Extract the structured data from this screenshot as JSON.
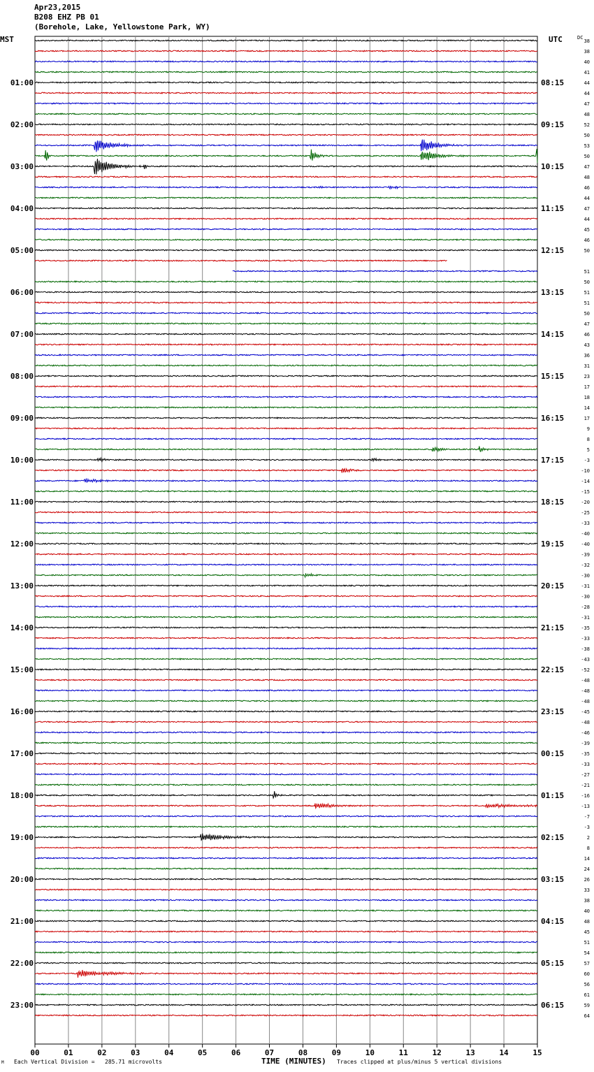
{
  "header": {
    "date": "Apr23,2015",
    "station": "B208 EHZ PB 01",
    "location": "(Borehole, Lake, Yellowstone Park, WY)"
  },
  "chart_data": {
    "type": "line",
    "xlabel": "TIME (MINUTES)",
    "xlim": [
      0,
      15
    ],
    "x_ticks": [
      "00",
      "01",
      "02",
      "03",
      "04",
      "05",
      "06",
      "07",
      "08",
      "09",
      "10",
      "11",
      "12",
      "13",
      "14",
      "15"
    ],
    "left_axis_title": "MST",
    "right_axis_title": "UTC",
    "dc_label": "DC",
    "hour_labels_left": [
      "01:00",
      "02:00",
      "03:00",
      "04:00",
      "05:00",
      "06:00",
      "07:00",
      "08:00",
      "09:00",
      "10:00",
      "11:00",
      "12:00",
      "13:00",
      "14:00",
      "15:00",
      "16:00",
      "17:00",
      "18:00",
      "19:00",
      "20:00",
      "21:00",
      "22:00",
      "23:00"
    ],
    "hour_labels_right": [
      "08:15",
      "09:15",
      "10:15",
      "11:15",
      "12:15",
      "13:15",
      "14:15",
      "15:15",
      "16:15",
      "17:15",
      "18:15",
      "19:15",
      "20:15",
      "21:15",
      "22:15",
      "23:15",
      "00:15",
      "01:15",
      "02:15",
      "03:15",
      "04:15",
      "05:15",
      "06:15"
    ],
    "dc_offsets": [
      "38",
      "38",
      "40",
      "41",
      "44",
      "44",
      "47",
      "48",
      "52",
      "50",
      "53",
      "50",
      "47",
      "48",
      "46",
      "44",
      "47",
      "44",
      "45",
      "46",
      "50",
      "",
      "51",
      "50",
      "51",
      "51",
      "50",
      "47",
      "46",
      "43",
      "36",
      "31",
      "23",
      "17",
      "18",
      "14",
      "17",
      "9",
      "8",
      "5",
      "-3",
      "-10",
      "-14",
      "-15",
      "-20",
      "-25",
      "-33",
      "-40",
      "-40",
      "-39",
      "-32",
      "-30",
      "-31",
      "-30",
      "-28",
      "-31",
      "-35",
      "-33",
      "-38",
      "-43",
      "-52",
      "-48",
      "-48",
      "-48",
      "-45",
      "-48",
      "-46",
      "-39",
      "-35",
      "-33",
      "-27",
      "-21",
      "-16",
      "-13",
      "-7",
      "-3",
      "2",
      "8",
      "14",
      "24",
      "26",
      "33",
      "38",
      "40",
      "48",
      "45",
      "51",
      "54",
      "57",
      "60",
      "56",
      "61",
      "59",
      "64"
    ],
    "trace_colors": [
      "#000000",
      "#cc0000",
      "#0000cc",
      "#006600"
    ],
    "vertical_division": "Each Vertical Division =   285.71 microvolts",
    "clip_note": "Traces clipped at plus/minus 5 vertical divisions",
    "corner_mark": "M"
  }
}
